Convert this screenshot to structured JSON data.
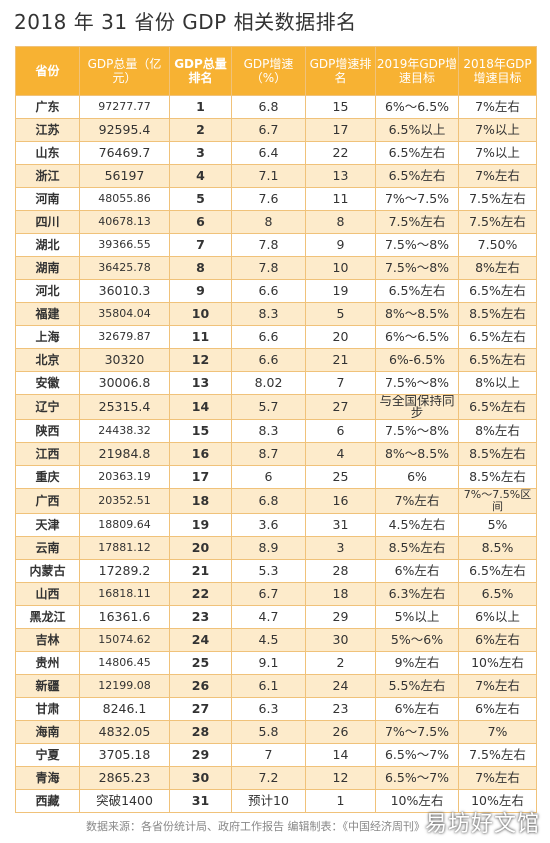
{
  "title": "2018 年 31 省份 GDP 相关数据排名",
  "headers": [
    "省份",
    "GDP总量（亿元）",
    "GDP总量排名",
    "GDP增速（%）",
    "GDP增速排名",
    "2019年GDP增速目标",
    "2018年GDP增速目标"
  ],
  "rows": [
    [
      "广东",
      "97277.77",
      "1",
      "6.8",
      "15",
      "6%～6.5%",
      "7%左右"
    ],
    [
      "江苏",
      "92595.4",
      "2",
      "6.7",
      "17",
      "6.5%以上",
      "7%以上"
    ],
    [
      "山东",
      "76469.7",
      "3",
      "6.4",
      "22",
      "6.5%左右",
      "7%以上"
    ],
    [
      "浙江",
      "56197",
      "4",
      "7.1",
      "13",
      "6.5%左右",
      "7%左右"
    ],
    [
      "河南",
      "48055.86",
      "5",
      "7.6",
      "11",
      "7%～7.5%",
      "7.5%左右"
    ],
    [
      "四川",
      "40678.13",
      "6",
      "8",
      "8",
      "7.5%左右",
      "7.5%左右"
    ],
    [
      "湖北",
      "39366.55",
      "7",
      "7.8",
      "9",
      "7.5%～8%",
      "7.50%"
    ],
    [
      "湖南",
      "36425.78",
      "8",
      "7.8",
      "10",
      "7.5%～8%",
      "8%左右"
    ],
    [
      "河北",
      "36010.3",
      "9",
      "6.6",
      "19",
      "6.5%左右",
      "6.5%左右"
    ],
    [
      "福建",
      "35804.04",
      "10",
      "8.3",
      "5",
      "8%～8.5%",
      "8.5%左右"
    ],
    [
      "上海",
      "32679.87",
      "11",
      "6.6",
      "20",
      "6%～6.5%",
      "6.5%左右"
    ],
    [
      "北京",
      "30320",
      "12",
      "6.6",
      "21",
      "6%-6.5%",
      "6.5%左右"
    ],
    [
      "安徽",
      "30006.8",
      "13",
      "8.02",
      "7",
      "7.5%～8%",
      "8%以上"
    ],
    [
      "辽宁",
      "25315.4",
      "14",
      "5.7",
      "27",
      "与全国保持同步",
      "6.5%左右"
    ],
    [
      "陕西",
      "24438.32",
      "15",
      "8.3",
      "6",
      "7.5%～8%",
      "8%左右"
    ],
    [
      "江西",
      "21984.8",
      "16",
      "8.7",
      "4",
      "8%～8.5%",
      "8.5%左右"
    ],
    [
      "重庆",
      "20363.19",
      "17",
      "6",
      "25",
      "6%",
      "8.5%左右"
    ],
    [
      "广西",
      "20352.51",
      "18",
      "6.8",
      "16",
      "7%左右",
      "7%～7.5%区间"
    ],
    [
      "天津",
      "18809.64",
      "19",
      "3.6",
      "31",
      "4.5%左右",
      "5%"
    ],
    [
      "云南",
      "17881.12",
      "20",
      "8.9",
      "3",
      "8.5%左右",
      "8.5%"
    ],
    [
      "内蒙古",
      "17289.2",
      "21",
      "5.3",
      "28",
      "6%左右",
      "6.5%左右"
    ],
    [
      "山西",
      "16818.11",
      "22",
      "6.7",
      "18",
      "6.3%左右",
      "6.5%"
    ],
    [
      "黑龙江",
      "16361.6",
      "23",
      "4.7",
      "29",
      "5%以上",
      "6%以上"
    ],
    [
      "吉林",
      "15074.62",
      "24",
      "4.5",
      "30",
      "5%～6%",
      "6%左右"
    ],
    [
      "贵州",
      "14806.45",
      "25",
      "9.1",
      "2",
      "9%左右",
      "10%左右"
    ],
    [
      "新疆",
      "12199.08",
      "26",
      "6.1",
      "24",
      "5.5%左右",
      "7%左右"
    ],
    [
      "甘肃",
      "8246.1",
      "27",
      "6.3",
      "23",
      "6%左右",
      "6%左右"
    ],
    [
      "海南",
      "4832.05",
      "28",
      "5.8",
      "26",
      "7%～7.5%",
      "7%"
    ],
    [
      "宁夏",
      "3705.18",
      "29",
      "7",
      "14",
      "6.5%～7%",
      "7.5%左右"
    ],
    [
      "青海",
      "2865.23",
      "30",
      "7.2",
      "12",
      "6.5%～7%",
      "7%左右"
    ],
    [
      "西藏",
      "突破1400",
      "31",
      "预计10",
      "1",
      "10%左右",
      "10%左右"
    ]
  ],
  "footer": "数据来源：各省份统计局、政府工作报告   编辑制表：《中国经济周刊》",
  "watermark": "易坊好文馆"
}
